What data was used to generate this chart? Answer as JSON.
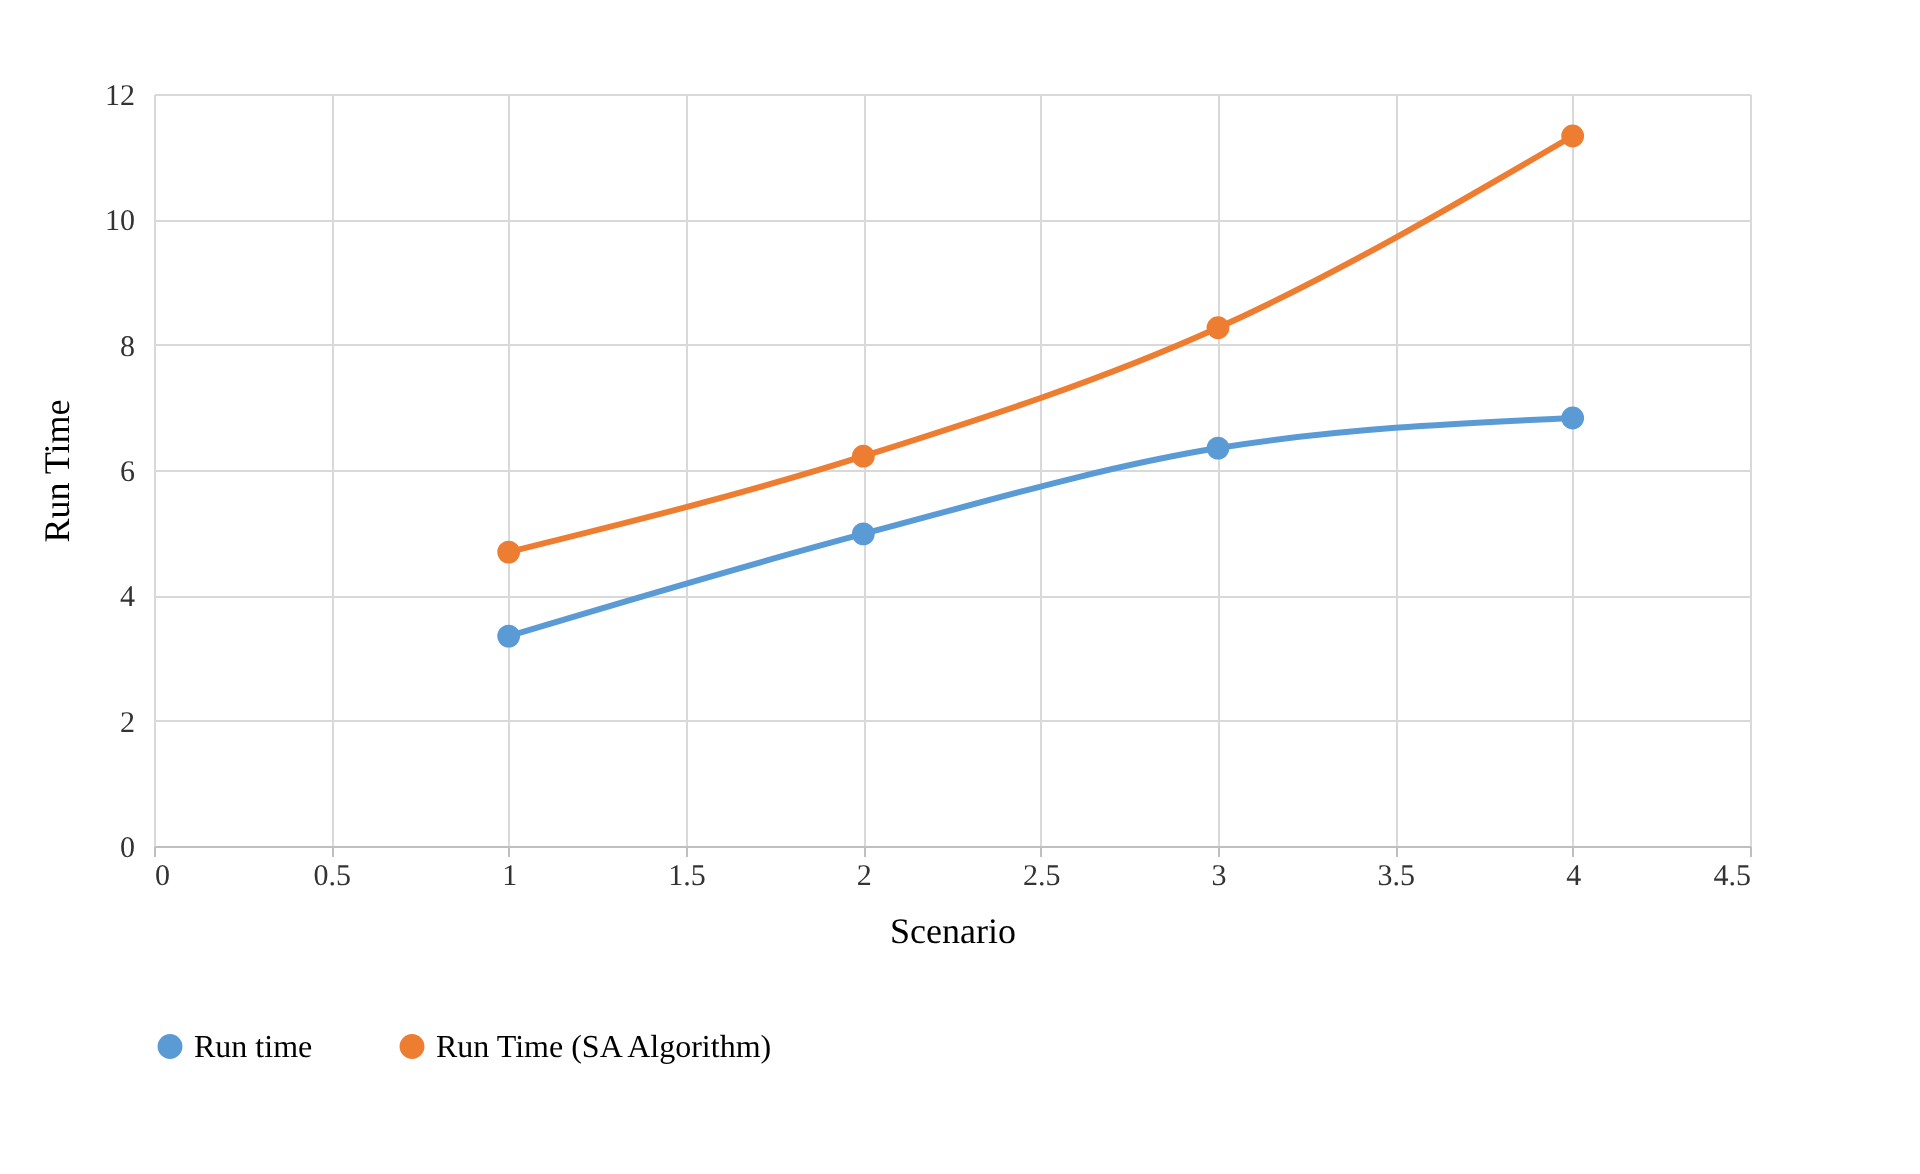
{
  "chart_data": {
    "type": "line",
    "xlabel": "Scenario",
    "ylabel": "Run Time",
    "x": [
      1,
      2,
      3,
      4
    ],
    "series": [
      {
        "name": "Run time",
        "color": "#5b9bd5",
        "values": [
          3.35,
          4.98,
          6.35,
          6.83
        ]
      },
      {
        "name": "Run Time (SA Algorithm)",
        "color": "#ed7d31",
        "values": [
          4.69,
          6.22,
          8.27,
          11.33
        ]
      }
    ],
    "xlim": [
      0,
      4.5
    ],
    "xticks": [
      0,
      0.5,
      1,
      1.5,
      2,
      2.5,
      3,
      3.5,
      4,
      4.5
    ],
    "ylim": [
      0,
      12
    ],
    "yticks": [
      0,
      2,
      4,
      6,
      8,
      10,
      12
    ],
    "grid": true,
    "legend": "bottom",
    "marker": "circle",
    "line_style": "solid"
  }
}
